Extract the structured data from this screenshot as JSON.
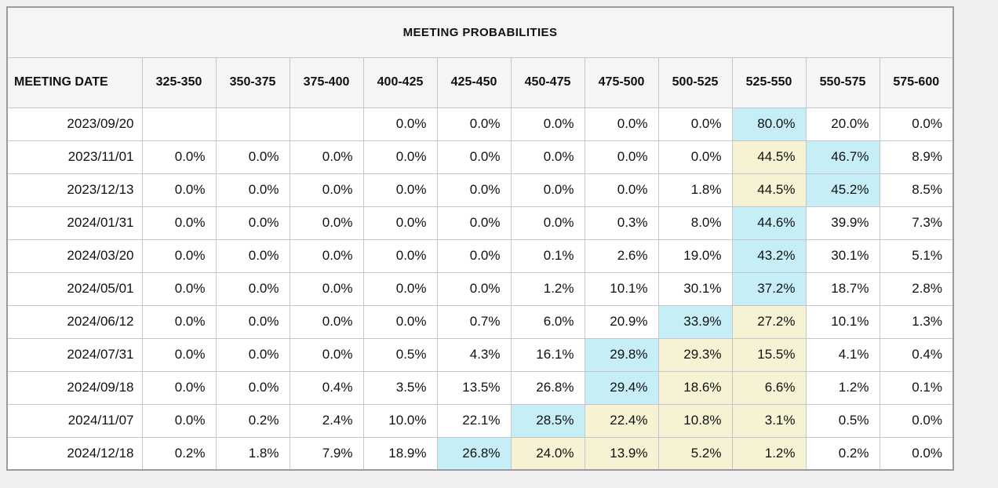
{
  "title": "MEETING PROBABILITIES",
  "colors": {
    "highlight_blue": "#c5eef7",
    "highlight_yellow": "#f5f3d3",
    "header_bg": "#f5f5f5",
    "page_bg": "#efefef"
  },
  "table": {
    "date_header": "MEETING DATE",
    "rate_headers": [
      "325-350",
      "350-375",
      "375-400",
      "400-425",
      "425-450",
      "450-475",
      "475-500",
      "500-525",
      "525-550",
      "550-575",
      "575-600"
    ],
    "rows": [
      {
        "date": "2023/09/20",
        "cells": [
          {
            "value": "",
            "highlight": null
          },
          {
            "value": "",
            "highlight": null
          },
          {
            "value": "",
            "highlight": null
          },
          {
            "value": "0.0%",
            "highlight": null
          },
          {
            "value": "0.0%",
            "highlight": null
          },
          {
            "value": "0.0%",
            "highlight": null
          },
          {
            "value": "0.0%",
            "highlight": null
          },
          {
            "value": "0.0%",
            "highlight": null
          },
          {
            "value": "80.0%",
            "highlight": "blue"
          },
          {
            "value": "20.0%",
            "highlight": null
          },
          {
            "value": "0.0%",
            "highlight": null
          }
        ]
      },
      {
        "date": "2023/11/01",
        "cells": [
          {
            "value": "0.0%",
            "highlight": null
          },
          {
            "value": "0.0%",
            "highlight": null
          },
          {
            "value": "0.0%",
            "highlight": null
          },
          {
            "value": "0.0%",
            "highlight": null
          },
          {
            "value": "0.0%",
            "highlight": null
          },
          {
            "value": "0.0%",
            "highlight": null
          },
          {
            "value": "0.0%",
            "highlight": null
          },
          {
            "value": "0.0%",
            "highlight": null
          },
          {
            "value": "44.5%",
            "highlight": "yellow"
          },
          {
            "value": "46.7%",
            "highlight": "blue"
          },
          {
            "value": "8.9%",
            "highlight": null
          }
        ]
      },
      {
        "date": "2023/12/13",
        "cells": [
          {
            "value": "0.0%",
            "highlight": null
          },
          {
            "value": "0.0%",
            "highlight": null
          },
          {
            "value": "0.0%",
            "highlight": null
          },
          {
            "value": "0.0%",
            "highlight": null
          },
          {
            "value": "0.0%",
            "highlight": null
          },
          {
            "value": "0.0%",
            "highlight": null
          },
          {
            "value": "0.0%",
            "highlight": null
          },
          {
            "value": "1.8%",
            "highlight": null
          },
          {
            "value": "44.5%",
            "highlight": "yellow"
          },
          {
            "value": "45.2%",
            "highlight": "blue"
          },
          {
            "value": "8.5%",
            "highlight": null
          }
        ]
      },
      {
        "date": "2024/01/31",
        "cells": [
          {
            "value": "0.0%",
            "highlight": null
          },
          {
            "value": "0.0%",
            "highlight": null
          },
          {
            "value": "0.0%",
            "highlight": null
          },
          {
            "value": "0.0%",
            "highlight": null
          },
          {
            "value": "0.0%",
            "highlight": null
          },
          {
            "value": "0.0%",
            "highlight": null
          },
          {
            "value": "0.3%",
            "highlight": null
          },
          {
            "value": "8.0%",
            "highlight": null
          },
          {
            "value": "44.6%",
            "highlight": "blue"
          },
          {
            "value": "39.9%",
            "highlight": null
          },
          {
            "value": "7.3%",
            "highlight": null
          }
        ]
      },
      {
        "date": "2024/03/20",
        "cells": [
          {
            "value": "0.0%",
            "highlight": null
          },
          {
            "value": "0.0%",
            "highlight": null
          },
          {
            "value": "0.0%",
            "highlight": null
          },
          {
            "value": "0.0%",
            "highlight": null
          },
          {
            "value": "0.0%",
            "highlight": null
          },
          {
            "value": "0.1%",
            "highlight": null
          },
          {
            "value": "2.6%",
            "highlight": null
          },
          {
            "value": "19.0%",
            "highlight": null
          },
          {
            "value": "43.2%",
            "highlight": "blue"
          },
          {
            "value": "30.1%",
            "highlight": null
          },
          {
            "value": "5.1%",
            "highlight": null
          }
        ]
      },
      {
        "date": "2024/05/01",
        "cells": [
          {
            "value": "0.0%",
            "highlight": null
          },
          {
            "value": "0.0%",
            "highlight": null
          },
          {
            "value": "0.0%",
            "highlight": null
          },
          {
            "value": "0.0%",
            "highlight": null
          },
          {
            "value": "0.0%",
            "highlight": null
          },
          {
            "value": "1.2%",
            "highlight": null
          },
          {
            "value": "10.1%",
            "highlight": null
          },
          {
            "value": "30.1%",
            "highlight": null
          },
          {
            "value": "37.2%",
            "highlight": "blue"
          },
          {
            "value": "18.7%",
            "highlight": null
          },
          {
            "value": "2.8%",
            "highlight": null
          }
        ]
      },
      {
        "date": "2024/06/12",
        "cells": [
          {
            "value": "0.0%",
            "highlight": null
          },
          {
            "value": "0.0%",
            "highlight": null
          },
          {
            "value": "0.0%",
            "highlight": null
          },
          {
            "value": "0.0%",
            "highlight": null
          },
          {
            "value": "0.7%",
            "highlight": null
          },
          {
            "value": "6.0%",
            "highlight": null
          },
          {
            "value": "20.9%",
            "highlight": null
          },
          {
            "value": "33.9%",
            "highlight": "blue"
          },
          {
            "value": "27.2%",
            "highlight": "yellow"
          },
          {
            "value": "10.1%",
            "highlight": null
          },
          {
            "value": "1.3%",
            "highlight": null
          }
        ]
      },
      {
        "date": "2024/07/31",
        "cells": [
          {
            "value": "0.0%",
            "highlight": null
          },
          {
            "value": "0.0%",
            "highlight": null
          },
          {
            "value": "0.0%",
            "highlight": null
          },
          {
            "value": "0.5%",
            "highlight": null
          },
          {
            "value": "4.3%",
            "highlight": null
          },
          {
            "value": "16.1%",
            "highlight": null
          },
          {
            "value": "29.8%",
            "highlight": "blue"
          },
          {
            "value": "29.3%",
            "highlight": "yellow"
          },
          {
            "value": "15.5%",
            "highlight": "yellow"
          },
          {
            "value": "4.1%",
            "highlight": null
          },
          {
            "value": "0.4%",
            "highlight": null
          }
        ]
      },
      {
        "date": "2024/09/18",
        "cells": [
          {
            "value": "0.0%",
            "highlight": null
          },
          {
            "value": "0.0%",
            "highlight": null
          },
          {
            "value": "0.4%",
            "highlight": null
          },
          {
            "value": "3.5%",
            "highlight": null
          },
          {
            "value": "13.5%",
            "highlight": null
          },
          {
            "value": "26.8%",
            "highlight": null
          },
          {
            "value": "29.4%",
            "highlight": "blue"
          },
          {
            "value": "18.6%",
            "highlight": "yellow"
          },
          {
            "value": "6.6%",
            "highlight": "yellow"
          },
          {
            "value": "1.2%",
            "highlight": null
          },
          {
            "value": "0.1%",
            "highlight": null
          }
        ]
      },
      {
        "date": "2024/11/07",
        "cells": [
          {
            "value": "0.0%",
            "highlight": null
          },
          {
            "value": "0.2%",
            "highlight": null
          },
          {
            "value": "2.4%",
            "highlight": null
          },
          {
            "value": "10.0%",
            "highlight": null
          },
          {
            "value": "22.1%",
            "highlight": null
          },
          {
            "value": "28.5%",
            "highlight": "blue"
          },
          {
            "value": "22.4%",
            "highlight": "yellow"
          },
          {
            "value": "10.8%",
            "highlight": "yellow"
          },
          {
            "value": "3.1%",
            "highlight": "yellow"
          },
          {
            "value": "0.5%",
            "highlight": null
          },
          {
            "value": "0.0%",
            "highlight": null
          }
        ]
      },
      {
        "date": "2024/12/18",
        "cells": [
          {
            "value": "0.2%",
            "highlight": null
          },
          {
            "value": "1.8%",
            "highlight": null
          },
          {
            "value": "7.9%",
            "highlight": null
          },
          {
            "value": "18.9%",
            "highlight": null
          },
          {
            "value": "26.8%",
            "highlight": "blue"
          },
          {
            "value": "24.0%",
            "highlight": "yellow"
          },
          {
            "value": "13.9%",
            "highlight": "yellow"
          },
          {
            "value": "5.2%",
            "highlight": "yellow"
          },
          {
            "value": "1.2%",
            "highlight": "yellow"
          },
          {
            "value": "0.2%",
            "highlight": null
          },
          {
            "value": "0.0%",
            "highlight": null
          }
        ]
      }
    ]
  }
}
